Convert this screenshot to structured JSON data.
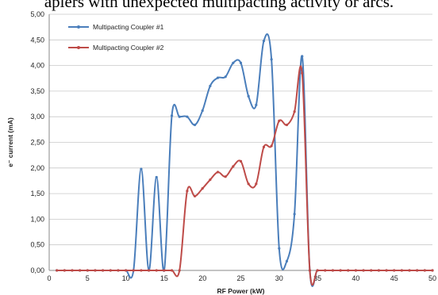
{
  "caption": "aplers with unexpected multipacting activity or arcs.",
  "chart_data": {
    "type": "line",
    "xlabel": "RF Power (kW)",
    "ylabel": "e⁻ current (mA)",
    "xlim": [
      0,
      50
    ],
    "ylim": [
      0,
      5
    ],
    "xticks": [
      0,
      5,
      10,
      15,
      20,
      25,
      30,
      35,
      40,
      45,
      50
    ],
    "yticks": [
      0,
      0.5,
      1,
      1.5,
      2,
      2.5,
      3,
      3.5,
      4,
      4.5,
      5
    ],
    "ytick_labels": [
      "0,00",
      "0,50",
      "1,00",
      "1,50",
      "2,00",
      "2,50",
      "3,00",
      "3,50",
      "4,00",
      "4,50",
      "5,00"
    ],
    "grid": "horizontal",
    "legend_position": "top-left",
    "series": [
      {
        "name": "Multipacting Coupler #1",
        "color": "#4a7ebb",
        "x": [
          1,
          2,
          3,
          4,
          5,
          6,
          7,
          8,
          9,
          10,
          11,
          12,
          13,
          14,
          15,
          16,
          17,
          18,
          19,
          20,
          21,
          22,
          23,
          24,
          25,
          26,
          27,
          28,
          29,
          30,
          31,
          32,
          33,
          34,
          35,
          36,
          37,
          38,
          39,
          40,
          41,
          42,
          43,
          44,
          45,
          46,
          47,
          48,
          49,
          50
        ],
        "y": [
          0,
          0,
          0,
          0,
          0,
          0,
          0,
          0,
          0,
          0,
          0,
          1.98,
          0,
          1.82,
          0,
          3.02,
          3.0,
          3.0,
          2.84,
          3.12,
          3.6,
          3.76,
          3.78,
          4.05,
          4.05,
          3.4,
          3.23,
          4.48,
          4.12,
          0.43,
          0.18,
          1.1,
          4.18,
          0,
          0,
          0,
          0,
          0,
          0,
          0,
          0,
          0,
          0,
          0,
          0,
          0,
          0,
          0,
          0,
          0
        ]
      },
      {
        "name": "Multipacting Coupler #2",
        "color": "#be4b48",
        "x": [
          1,
          2,
          3,
          4,
          5,
          6,
          7,
          8,
          9,
          10,
          11,
          12,
          13,
          14,
          15,
          16,
          17,
          18,
          19,
          20,
          21,
          22,
          23,
          24,
          25,
          26,
          27,
          28,
          29,
          30,
          31,
          32,
          33,
          34,
          35,
          36,
          37,
          38,
          39,
          40,
          41,
          42,
          43,
          44,
          45,
          46,
          47,
          48,
          49,
          50
        ],
        "y": [
          0,
          0,
          0,
          0,
          0,
          0,
          0,
          0,
          0,
          0,
          0,
          0,
          0,
          0,
          0,
          0,
          0,
          1.55,
          1.45,
          1.6,
          1.77,
          1.92,
          1.83,
          2.03,
          2.13,
          1.69,
          1.69,
          2.41,
          2.43,
          2.92,
          2.84,
          3.1,
          3.85,
          0,
          0,
          0,
          0,
          0,
          0,
          0,
          0,
          0,
          0,
          0,
          0,
          0,
          0,
          0,
          0,
          0
        ]
      }
    ]
  }
}
